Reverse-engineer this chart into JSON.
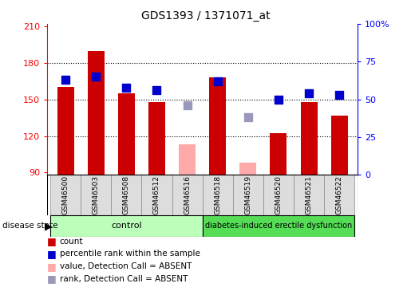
{
  "title": "GDS1393 / 1371071_at",
  "samples": [
    "GSM46500",
    "GSM46503",
    "GSM46508",
    "GSM46512",
    "GSM46516",
    "GSM46518",
    "GSM46519",
    "GSM46520",
    "GSM46521",
    "GSM46522"
  ],
  "count_values": [
    160,
    190,
    155,
    148,
    null,
    168,
    null,
    122,
    148,
    137
  ],
  "count_absent": [
    null,
    null,
    null,
    null,
    113,
    null,
    98,
    null,
    null,
    null
  ],
  "rank_values": [
    63,
    65,
    58,
    56,
    null,
    62,
    null,
    50,
    54,
    53
  ],
  "rank_absent": [
    null,
    null,
    null,
    null,
    46,
    null,
    38,
    null,
    null,
    null
  ],
  "groups": [
    "control",
    "control",
    "control",
    "control",
    "control",
    "diabetes",
    "diabetes",
    "diabetes",
    "diabetes",
    "diabetes"
  ],
  "ylim_left": [
    88,
    212
  ],
  "ylim_right": [
    0,
    100
  ],
  "yticks_left": [
    90,
    120,
    150,
    180,
    210
  ],
  "yticks_right": [
    0,
    25,
    50,
    75,
    100
  ],
  "bar_color_present": "#cc0000",
  "bar_color_absent": "#ffaaaa",
  "dot_color_present": "#0000cc",
  "dot_color_absent": "#9999bb",
  "control_color": "#bbffbb",
  "diabetes_color": "#55dd55",
  "group_label_control": "control",
  "group_label_diabetes": "diabetes-induced erectile dysfunction",
  "disease_state_label": "disease state",
  "legend_items": [
    {
      "label": "count",
      "color": "#cc0000"
    },
    {
      "label": "percentile rank within the sample",
      "color": "#0000cc"
    },
    {
      "label": "value, Detection Call = ABSENT",
      "color": "#ffaaaa"
    },
    {
      "label": "rank, Detection Call = ABSENT",
      "color": "#9999bb"
    }
  ]
}
